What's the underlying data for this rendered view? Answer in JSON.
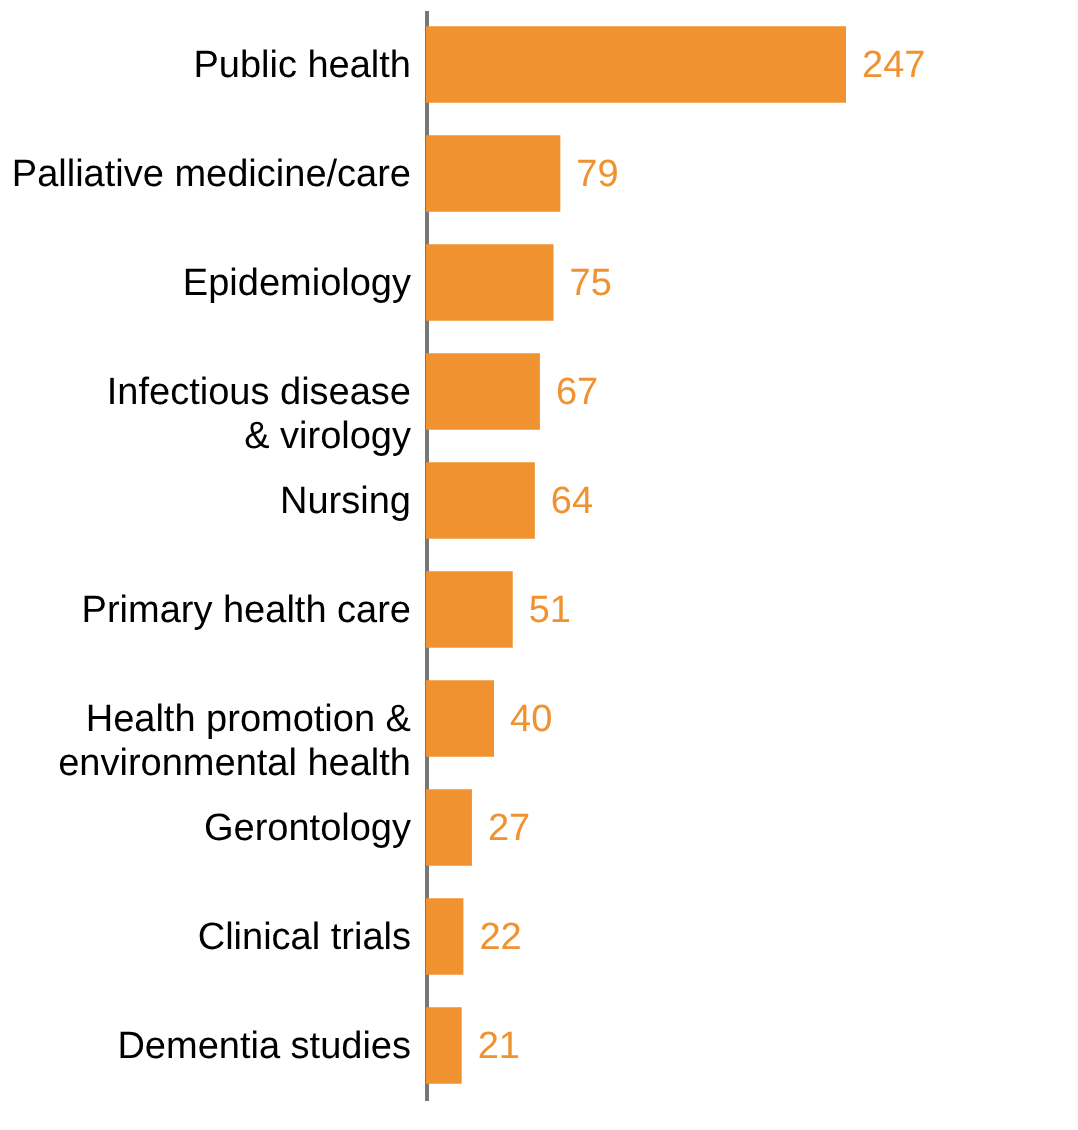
{
  "chart_data": {
    "type": "bar",
    "orientation": "horizontal",
    "data_labels": true,
    "categories": [
      "Public health",
      "Palliative medicine/care",
      "Epidemiology",
      "Infectious disease\n& virology",
      "Nursing",
      "Primary health care",
      "Health promotion &\nenvironmental health",
      "Gerontology",
      "Clinical trials",
      "Dementia studies"
    ],
    "values": [
      247,
      79,
      75,
      67,
      64,
      51,
      40,
      27,
      22,
      21
    ],
    "color": "#f0922f"
  }
}
